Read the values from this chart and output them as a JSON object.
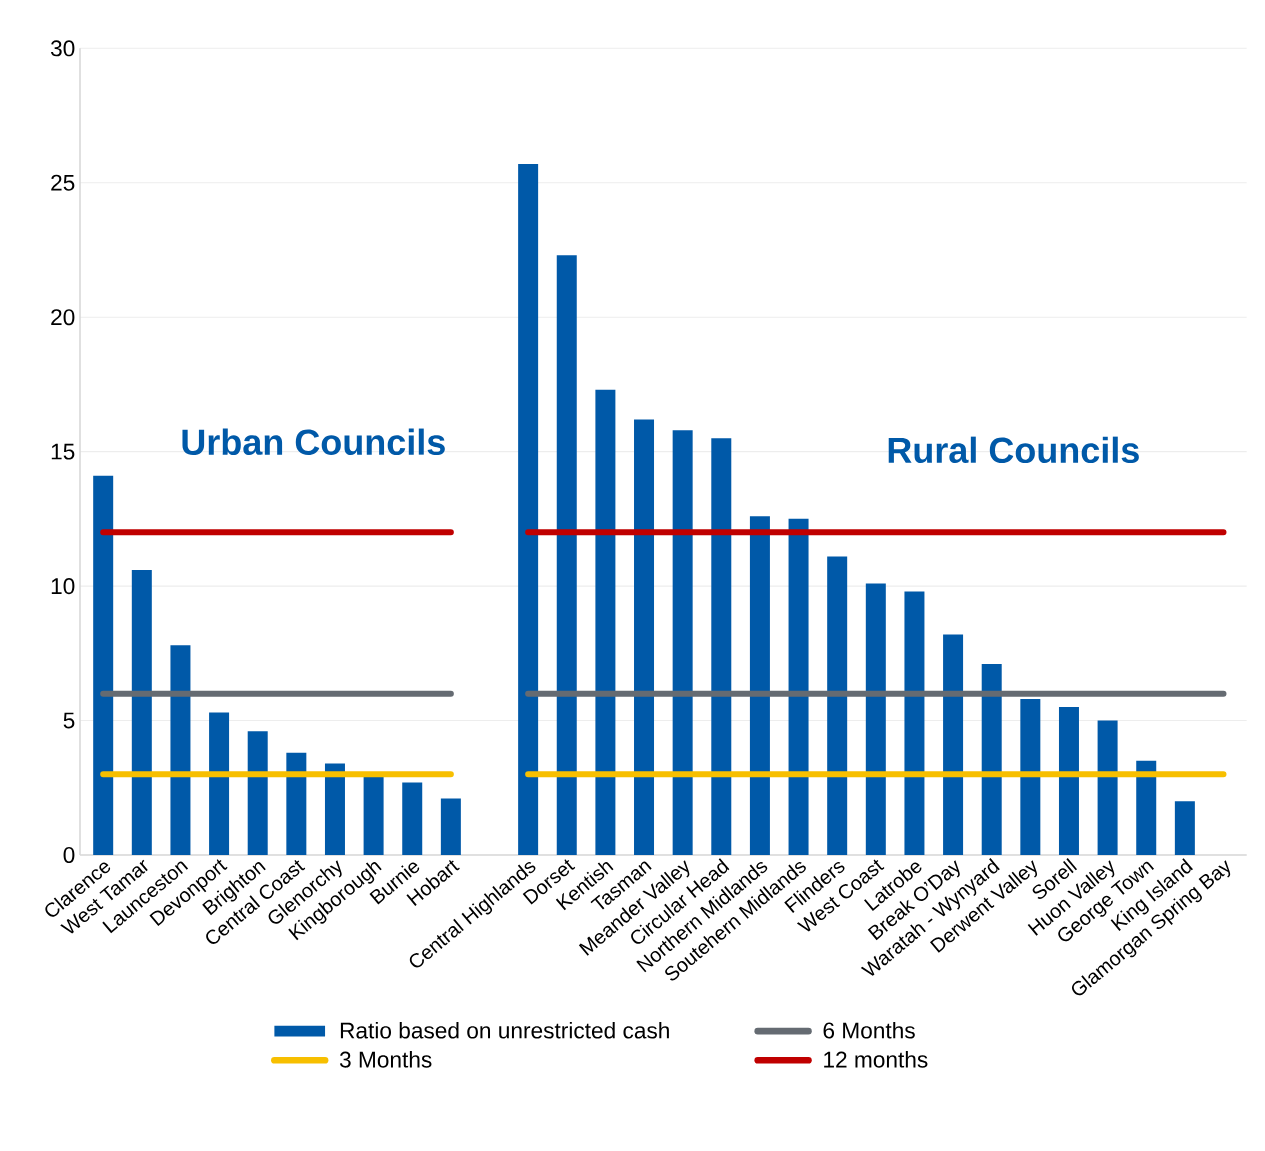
{
  "chart_data": {
    "type": "bar",
    "categories": [
      "Clarence",
      "West Tamar",
      "Launceston",
      "Devonport",
      "Brighton",
      "Central Coast",
      "Glenorchy",
      "Kingborough",
      "Burnie",
      "Hobart",
      null,
      "Central Highlands",
      "Dorset",
      "Kentish",
      "Tasman",
      "Meander Valley",
      "Circular Head",
      "Northern Midlands",
      "Soutehern Midlands",
      "Flinders",
      "West Coast",
      "Latrobe",
      "Break O’Day",
      "Waratah - Wynyard",
      "Derwent Valley",
      "Sorell",
      "Huon Valley",
      "George Town",
      "King Island",
      "Glamorgan Spring Bay"
    ],
    "series": [
      {
        "name": "Ratio based on unrestricted cash",
        "color": "#0059a8",
        "values": [
          14.1,
          10.6,
          7.8,
          5.3,
          4.6,
          3.8,
          3.4,
          2.9,
          2.7,
          2.1,
          null,
          25.7,
          22.3,
          17.3,
          16.2,
          15.8,
          15.5,
          12.6,
          12.5,
          11.1,
          10.1,
          9.8,
          8.2,
          7.1,
          5.8,
          5.5,
          5.0,
          3.5,
          2.0,
          null
        ]
      },
      {
        "name": "6 Months",
        "type": "line",
        "color": "#656b72",
        "values": [
          6,
          6,
          6,
          6,
          6,
          6,
          6,
          6,
          6,
          6,
          null,
          6,
          6,
          6,
          6,
          6,
          6,
          6,
          6,
          6,
          6,
          6,
          6,
          6,
          6,
          6,
          6,
          6,
          6,
          6
        ]
      },
      {
        "name": "3 Months",
        "type": "line",
        "color": "#f7bf00",
        "values": [
          3,
          3,
          3,
          3,
          3,
          3,
          3,
          3,
          3,
          3,
          null,
          3,
          3,
          3,
          3,
          3,
          3,
          3,
          3,
          3,
          3,
          3,
          3,
          3,
          3,
          3,
          3,
          3,
          3,
          3
        ]
      },
      {
        "name": "12 months",
        "type": "line",
        "color": "#c00000",
        "values": [
          12,
          12,
          12,
          12,
          12,
          12,
          12,
          12,
          12,
          12,
          null,
          12,
          12,
          12,
          12,
          12,
          12,
          12,
          12,
          12,
          12,
          12,
          12,
          12,
          12,
          12,
          12,
          12,
          12,
          12
        ]
      }
    ],
    "ylim": [
      0,
      30
    ],
    "yticks": [
      0,
      5,
      10,
      15,
      20,
      25,
      30
    ],
    "grid": "y",
    "legend": "bottom",
    "annotations": [
      "Urban Councils",
      "Rural Councils"
    ]
  }
}
